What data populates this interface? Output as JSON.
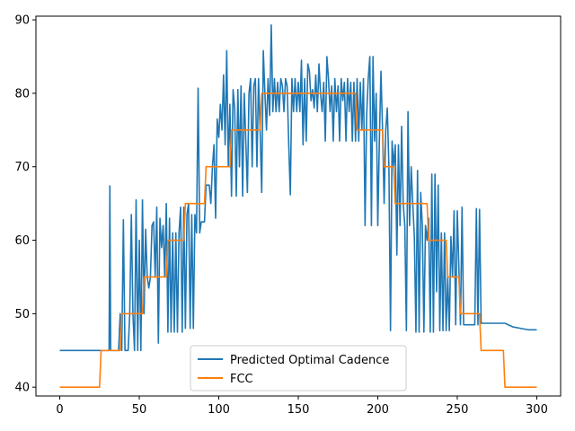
{
  "chart_data": {
    "type": "line",
    "title": "",
    "xlabel": "",
    "ylabel": "",
    "xlim": [
      -15,
      315
    ],
    "ylim": [
      38.8,
      90.5
    ],
    "x_ticks": [
      0,
      50,
      100,
      150,
      200,
      250,
      300
    ],
    "y_ticks": [
      40,
      50,
      60,
      70,
      80,
      90
    ],
    "legend_position": "bottom-center",
    "grid": false,
    "series": [
      {
        "name": "Predicted Optimal Cadence",
        "color": "#1f77b4",
        "points": [
          [
            0,
            45
          ],
          [
            10,
            45
          ],
          [
            20,
            45
          ],
          [
            31,
            45
          ],
          [
            31.5,
            67.4
          ],
          [
            32,
            45
          ],
          [
            35,
            45
          ],
          [
            37,
            45
          ],
          [
            38,
            50
          ],
          [
            39,
            45
          ],
          [
            40,
            62.8
          ],
          [
            41,
            45
          ],
          [
            43,
            45
          ],
          [
            44,
            50
          ],
          [
            45,
            63.5
          ],
          [
            46,
            50
          ],
          [
            47,
            45
          ],
          [
            48,
            65.5
          ],
          [
            49,
            45
          ],
          [
            50,
            60
          ],
          [
            51,
            45
          ],
          [
            52,
            65.5
          ],
          [
            53,
            50
          ],
          [
            54,
            61.5
          ],
          [
            55,
            55
          ],
          [
            56,
            53.5
          ],
          [
            57,
            55
          ],
          [
            58,
            62
          ],
          [
            59,
            62.5
          ],
          [
            60,
            55
          ],
          [
            61,
            64.5
          ],
          [
            62,
            46
          ],
          [
            63,
            63
          ],
          [
            64,
            59
          ],
          [
            65,
            62
          ],
          [
            66,
            55
          ],
          [
            67,
            65
          ],
          [
            68,
            47.5
          ],
          [
            69,
            63
          ],
          [
            70,
            47.5
          ],
          [
            71,
            61
          ],
          [
            72,
            47.5
          ],
          [
            73,
            61
          ],
          [
            74,
            47.5
          ],
          [
            75,
            61
          ],
          [
            76,
            64.5
          ],
          [
            77,
            47.5
          ],
          [
            78,
            64.5
          ],
          [
            79,
            48
          ],
          [
            80,
            63.5
          ],
          [
            81,
            65
          ],
          [
            82,
            48
          ],
          [
            83,
            63.5
          ],
          [
            84,
            48
          ],
          [
            85,
            63.5
          ],
          [
            86,
            61
          ],
          [
            87,
            80.7
          ],
          [
            88,
            61
          ],
          [
            89,
            62.5
          ],
          [
            91,
            62.5
          ],
          [
            92,
            67.5
          ],
          [
            94,
            67.5
          ],
          [
            95,
            65
          ],
          [
            96,
            70
          ],
          [
            97,
            73
          ],
          [
            98,
            63
          ],
          [
            99,
            76.5
          ],
          [
            100,
            74
          ],
          [
            101,
            78.5
          ],
          [
            102,
            75
          ],
          [
            103,
            82.5
          ],
          [
            104,
            73
          ],
          [
            105,
            85.8
          ],
          [
            106,
            70
          ],
          [
            107,
            78.5
          ],
          [
            108,
            66
          ],
          [
            109,
            80.5
          ],
          [
            110,
            78
          ],
          [
            111,
            66
          ],
          [
            112,
            80.5
          ],
          [
            113,
            70
          ],
          [
            114,
            81
          ],
          [
            115,
            66
          ],
          [
            116,
            80
          ],
          [
            117,
            73.5
          ],
          [
            118,
            66.5
          ],
          [
            119,
            80
          ],
          [
            120,
            82
          ],
          [
            121,
            70
          ],
          [
            122,
            81
          ],
          [
            123,
            82
          ],
          [
            124,
            70
          ],
          [
            125,
            82
          ],
          [
            126,
            75
          ],
          [
            127,
            66.5
          ],
          [
            128,
            85.8
          ],
          [
            129,
            80
          ],
          [
            130,
            75
          ],
          [
            131,
            82
          ],
          [
            132,
            77
          ],
          [
            133,
            89.3
          ],
          [
            134,
            77.5
          ],
          [
            135,
            82
          ],
          [
            136,
            77.5
          ],
          [
            137,
            81.5
          ],
          [
            138,
            77.5
          ],
          [
            139,
            82
          ],
          [
            140,
            81
          ],
          [
            141,
            77.5
          ],
          [
            142,
            82
          ],
          [
            143,
            81
          ],
          [
            144,
            73
          ],
          [
            145,
            66.2
          ],
          [
            146,
            82
          ],
          [
            147,
            77.5
          ],
          [
            148,
            82
          ],
          [
            149,
            77.5
          ],
          [
            150,
            81.5
          ],
          [
            151,
            77.5
          ],
          [
            152,
            84.5
          ],
          [
            153,
            73
          ],
          [
            154,
            82
          ],
          [
            155,
            73.5
          ],
          [
            156,
            84
          ],
          [
            157,
            83
          ],
          [
            158,
            79
          ],
          [
            159,
            80.5
          ],
          [
            160,
            78
          ],
          [
            161,
            82.5
          ],
          [
            162,
            77.5
          ],
          [
            163,
            84
          ],
          [
            164,
            80
          ],
          [
            165,
            77.5
          ],
          [
            166,
            81.5
          ],
          [
            167,
            73.5
          ],
          [
            168,
            85
          ],
          [
            169,
            82
          ],
          [
            170,
            77.5
          ],
          [
            171,
            81
          ],
          [
            172,
            73.5
          ],
          [
            173,
            82
          ],
          [
            174,
            77.5
          ],
          [
            175,
            81
          ],
          [
            176,
            73.5
          ],
          [
            177,
            82
          ],
          [
            178,
            79
          ],
          [
            179,
            81.5
          ],
          [
            180,
            73.5
          ],
          [
            181,
            82
          ],
          [
            182,
            77.5
          ],
          [
            183,
            81.5
          ],
          [
            184,
            73.5
          ],
          [
            185,
            81.5
          ],
          [
            186,
            73.5
          ],
          [
            187,
            82
          ],
          [
            188,
            73.5
          ],
          [
            189,
            81.5
          ],
          [
            190,
            75
          ],
          [
            191,
            82
          ],
          [
            192,
            62
          ],
          [
            193,
            77
          ],
          [
            194,
            82
          ],
          [
            195,
            85
          ],
          [
            196,
            62
          ],
          [
            197,
            85
          ],
          [
            198,
            73.5
          ],
          [
            199,
            80
          ],
          [
            200,
            62
          ],
          [
            201,
            73.5
          ],
          [
            202,
            83
          ],
          [
            203,
            75
          ],
          [
            204,
            65
          ],
          [
            205,
            75
          ],
          [
            206,
            78
          ],
          [
            207,
            70
          ],
          [
            208,
            47.7
          ],
          [
            209,
            73.5
          ],
          [
            210,
            70
          ],
          [
            211,
            73
          ],
          [
            212,
            58
          ],
          [
            213,
            73
          ],
          [
            214,
            62
          ],
          [
            215,
            75.5
          ],
          [
            216,
            65
          ],
          [
            217,
            62
          ],
          [
            218,
            47.7
          ],
          [
            219,
            77.5
          ],
          [
            220,
            62
          ],
          [
            221,
            70
          ],
          [
            222,
            65
          ],
          [
            223,
            60.5
          ],
          [
            224,
            47.5
          ],
          [
            225,
            69.5
          ],
          [
            226,
            47.5
          ],
          [
            227,
            66.5
          ],
          [
            228,
            62
          ],
          [
            229,
            47.5
          ],
          [
            230,
            62
          ],
          [
            231,
            60
          ],
          [
            232,
            63
          ],
          [
            233,
            47.5
          ],
          [
            234,
            69
          ],
          [
            235,
            47.5
          ],
          [
            236,
            69
          ],
          [
            237,
            53
          ],
          [
            238,
            67.5
          ],
          [
            239,
            47.7
          ],
          [
            240,
            61
          ],
          [
            241,
            47.7
          ],
          [
            242,
            61
          ],
          [
            243,
            47.7
          ],
          [
            244,
            55
          ],
          [
            245,
            47.7
          ],
          [
            246,
            60.5
          ],
          [
            247,
            55
          ],
          [
            248,
            64
          ],
          [
            249,
            48.5
          ],
          [
            250,
            64
          ],
          [
            252,
            48.5
          ],
          [
            253,
            64.5
          ],
          [
            254,
            48.5
          ],
          [
            256,
            48.5
          ],
          [
            257,
            48.5
          ],
          [
            258,
            48.5
          ],
          [
            259,
            48.5
          ],
          [
            260,
            48.5
          ],
          [
            261,
            48.5
          ],
          [
            262,
            64.3
          ],
          [
            263,
            48.5
          ],
          [
            264,
            64.2
          ],
          [
            265,
            48.7
          ],
          [
            270,
            48.7
          ],
          [
            280,
            48.7
          ],
          [
            285,
            48.2
          ],
          [
            290,
            48
          ],
          [
            295,
            47.8
          ],
          [
            300,
            47.8
          ]
        ]
      },
      {
        "name": "FCC",
        "color": "#ff7f0e",
        "points": [
          [
            0,
            40
          ],
          [
            25,
            40
          ],
          [
            26,
            45
          ],
          [
            38,
            45
          ],
          [
            39,
            50
          ],
          [
            52,
            50
          ],
          [
            53,
            55
          ],
          [
            67,
            55
          ],
          [
            68,
            60
          ],
          [
            78,
            60
          ],
          [
            79,
            65
          ],
          [
            91,
            65
          ],
          [
            92,
            70
          ],
          [
            107,
            70
          ],
          [
            108,
            75
          ],
          [
            126,
            75
          ],
          [
            127,
            80
          ],
          [
            186,
            80
          ],
          [
            187,
            75
          ],
          [
            203,
            75
          ],
          [
            204,
            70
          ],
          [
            210,
            70
          ],
          [
            211,
            65
          ],
          [
            231,
            65
          ],
          [
            232,
            60
          ],
          [
            243,
            60
          ],
          [
            244,
            55
          ],
          [
            251,
            55
          ],
          [
            252,
            50
          ],
          [
            264,
            50
          ],
          [
            265,
            45
          ],
          [
            279,
            45
          ],
          [
            280,
            40
          ],
          [
            300,
            40
          ]
        ]
      }
    ]
  }
}
